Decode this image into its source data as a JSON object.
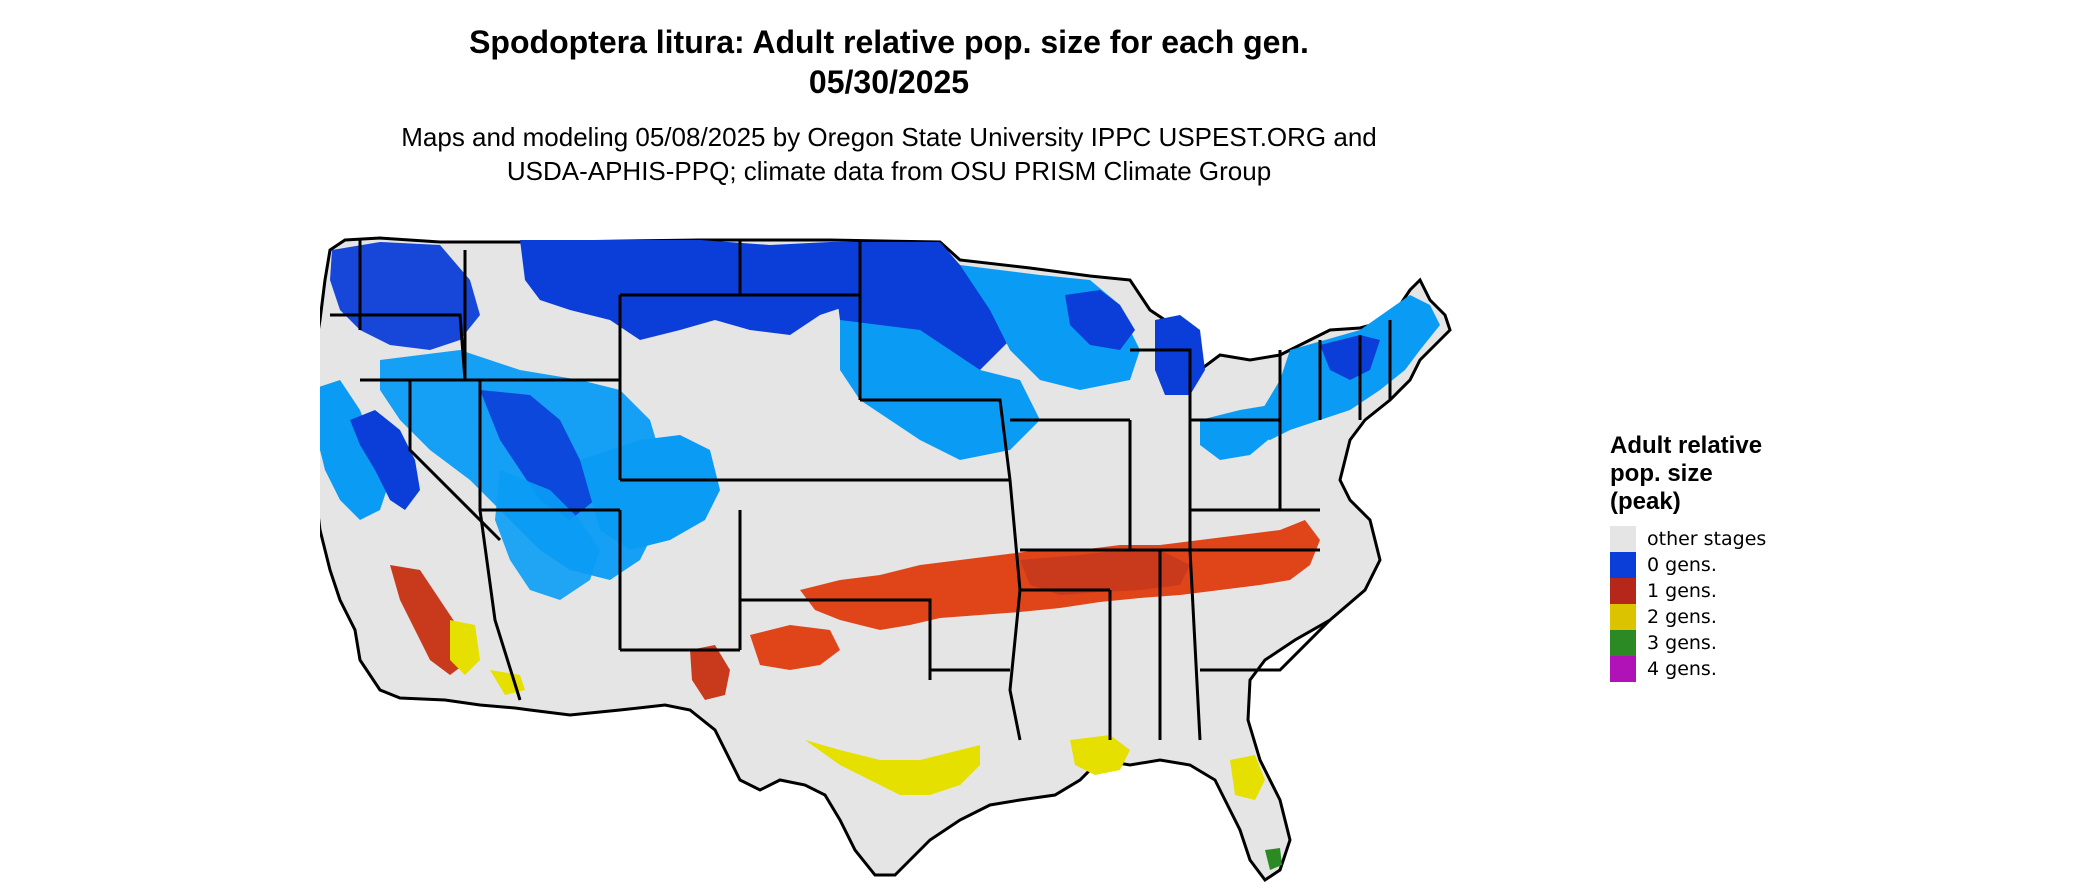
{
  "header": {
    "title_line1": "Spodoptera litura: Adult relative pop. size for each gen.",
    "title_line2": "05/30/2025",
    "subtitle_line1": "Maps and modeling 05/08/2025 by Oregon State University IPPC USPEST.ORG and",
    "subtitle_line2": "USDA-APHIS-PPQ; climate data from OSU PRISM Climate Group"
  },
  "legend": {
    "title_line1": "Adult relative",
    "title_line2": "pop. size",
    "title_line3": "(peak)",
    "items": [
      {
        "label": "other stages",
        "color": "#e5e5e5"
      },
      {
        "label": "0 gens.",
        "color": "#0b3ed8"
      },
      {
        "label": "1 gens.",
        "color": "#b5261b"
      },
      {
        "label": "2 gens.",
        "color": "#dcc300"
      },
      {
        "label": "3 gens.",
        "color": "#2b8a23"
      },
      {
        "label": "4 gens.",
        "color": "#b012b8"
      }
    ]
  },
  "map_colors": {
    "land": "#e5e5e5",
    "blue_dark": "#0b3ed8",
    "blue_light": "#0a9cf5",
    "red": "#c9391c",
    "orange_red": "#e0451a",
    "yellow": "#e6e000",
    "green": "#2b8a23",
    "border": "#000000"
  }
}
